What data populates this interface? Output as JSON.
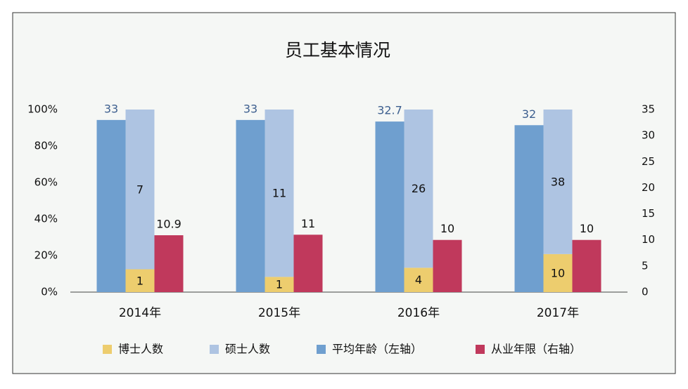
{
  "chart_data": {
    "type": "bar",
    "title": "员工基本情况",
    "categories": [
      "2014年",
      "2015年",
      "2016年",
      "2017年"
    ],
    "series": [
      {
        "name": "博士人数",
        "color": "#edcd6e",
        "axis": "y",
        "stack": "percent",
        "values": [
          1,
          1,
          4,
          10
        ]
      },
      {
        "name": "硕士人数",
        "color": "#aec4e2",
        "axis": "y",
        "stack": "percent",
        "values": [
          7,
          11,
          26,
          38
        ]
      },
      {
        "name": "平均年龄（左轴）",
        "color": "#6f9fcf",
        "axis": "y2",
        "values": [
          33,
          33,
          32.7,
          32
        ]
      },
      {
        "name": "从业年限（右轴）",
        "color": "#c0395c",
        "axis": "y2",
        "values": [
          10.9,
          11,
          10,
          10
        ]
      }
    ],
    "ylim": [
      0,
      100
    ],
    "yticks": [
      {
        "value": 0,
        "label": "0%"
      },
      {
        "value": 20,
        "label": "20%"
      },
      {
        "value": 40,
        "label": "40%"
      },
      {
        "value": 60,
        "label": "60%"
      },
      {
        "value": 80,
        "label": "80%"
      },
      {
        "value": 100,
        "label": "100%"
      }
    ],
    "y2lim": [
      0,
      35
    ],
    "y2ticks": [
      0,
      5,
      10,
      15,
      20,
      25,
      30,
      35
    ],
    "grid": false,
    "legend": "bottom"
  }
}
